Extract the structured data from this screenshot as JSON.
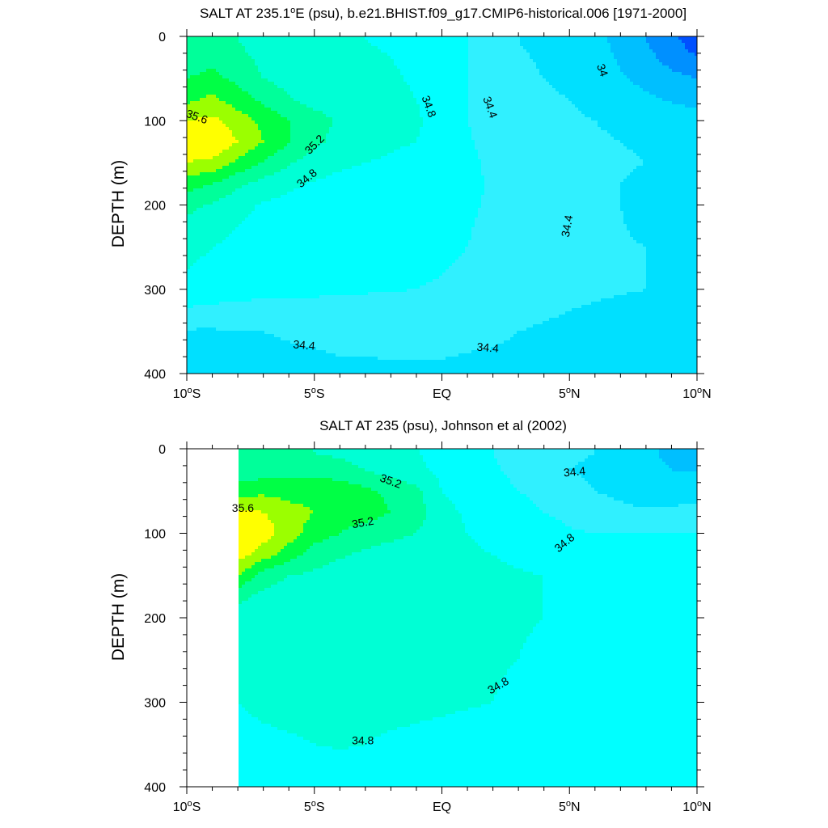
{
  "figure": {
    "panels": [
      {
        "title_main": "SALT AT 235.1",
        "title_sup": "o",
        "title_rest": "E (psu), b.e21.BHIST.f09_g17.CMIP6-historical.006 [1971-2000]",
        "ylabel": "DEPTH (m)"
      },
      {
        "title_main": "SALT AT 235 (psu), Johnson et al (2002)",
        "title_sup": "",
        "title_rest": "",
        "ylabel": "DEPTH (m)"
      }
    ],
    "x_ticks": [
      {
        "main": "10",
        "sup": "o",
        "rest": "S"
      },
      {
        "main": "5",
        "sup": "o",
        "rest": "S"
      },
      {
        "main": "EQ",
        "sup": "",
        "rest": ""
      },
      {
        "main": "5",
        "sup": "o",
        "rest": "N"
      },
      {
        "main": "10",
        "sup": "o",
        "rest": "N"
      }
    ],
    "y_ticks": [
      "0",
      "100",
      "200",
      "300",
      "400"
    ]
  },
  "palette": {
    "levels": [
      33.6,
      33.8,
      34.0,
      34.2,
      34.4,
      34.6,
      34.8,
      35.0,
      35.2,
      35.4,
      35.6,
      35.8
    ],
    "colors": [
      "#0000ff",
      "#0050ff",
      "#0090ff",
      "#00bfff",
      "#00e0ff",
      "#30f0ff",
      "#00ffff",
      "#00ffd5",
      "#00ff9a",
      "#00ff45",
      "#9bff00",
      "#ffff00",
      "#ffd928"
    ]
  },
  "chart_data": [
    {
      "type": "heatmap",
      "title": "SALT AT 235.1°E (psu), b.e21.BHIST.f09_g17.CMIP6-historical.006 [1971-2000]",
      "xlabel": "",
      "ylabel": "DEPTH (m)",
      "xlim": [
        -10,
        10
      ],
      "ylim": [
        400,
        0
      ],
      "x": [
        -10,
        -9,
        -8,
        -7,
        -6,
        -5,
        -4,
        -3,
        -2,
        -1,
        0,
        1,
        2,
        3,
        4,
        5,
        6,
        7,
        8,
        9,
        10
      ],
      "y": [
        5,
        25,
        50,
        75,
        100,
        125,
        150,
        175,
        200,
        250,
        300,
        350,
        400
      ],
      "z": [
        [
          35.05,
          35.1,
          35.0,
          34.92,
          34.88,
          34.84,
          34.82,
          34.8,
          34.78,
          34.74,
          34.7,
          34.6,
          34.5,
          34.4,
          34.36,
          34.3,
          34.25,
          34.15,
          34.0,
          33.85,
          33.7
        ],
        [
          35.1,
          35.15,
          35.05,
          34.95,
          34.9,
          34.86,
          34.84,
          34.82,
          34.8,
          34.76,
          34.7,
          34.6,
          34.5,
          34.42,
          34.38,
          34.32,
          34.26,
          34.18,
          34.06,
          33.92,
          33.8
        ],
        [
          35.2,
          35.25,
          35.15,
          35.0,
          34.92,
          34.88,
          34.86,
          34.84,
          34.82,
          34.78,
          34.72,
          34.6,
          34.5,
          34.44,
          34.4,
          34.36,
          34.3,
          34.22,
          34.14,
          34.06,
          34.0
        ],
        [
          35.35,
          35.45,
          35.3,
          35.15,
          35.02,
          34.93,
          34.9,
          34.86,
          34.84,
          34.8,
          34.72,
          34.6,
          34.5,
          34.46,
          34.43,
          34.4,
          34.36,
          34.3,
          34.24,
          34.18,
          34.14
        ],
        [
          35.6,
          35.65,
          35.5,
          35.35,
          35.2,
          35.08,
          34.97,
          34.87,
          34.84,
          34.82,
          34.74,
          34.6,
          34.52,
          34.48,
          34.45,
          34.42,
          34.4,
          34.37,
          34.34,
          34.3,
          34.28
        ],
        [
          35.7,
          35.8,
          35.6,
          35.4,
          35.22,
          35.05,
          34.93,
          34.85,
          34.82,
          34.8,
          34.74,
          34.62,
          34.54,
          34.5,
          34.47,
          34.44,
          34.42,
          34.4,
          34.38,
          34.36,
          34.36
        ],
        [
          35.6,
          35.55,
          35.35,
          35.18,
          35.02,
          34.9,
          34.84,
          34.8,
          34.78,
          34.76,
          34.72,
          34.64,
          34.56,
          34.52,
          34.49,
          34.46,
          34.44,
          34.42,
          34.4,
          34.38,
          34.38
        ],
        [
          35.3,
          35.2,
          35.05,
          34.92,
          34.84,
          34.78,
          34.74,
          34.72,
          34.71,
          34.7,
          34.68,
          34.64,
          34.58,
          34.53,
          34.5,
          34.47,
          34.44,
          34.4,
          34.36,
          34.38,
          34.4
        ],
        [
          35.05,
          34.98,
          34.86,
          34.78,
          34.74,
          34.7,
          34.68,
          34.67,
          34.67,
          34.66,
          34.65,
          34.62,
          34.58,
          34.54,
          34.5,
          34.47,
          34.44,
          34.4,
          34.36,
          34.37,
          34.4
        ],
        [
          34.85,
          34.8,
          34.74,
          34.7,
          34.68,
          34.66,
          34.65,
          34.64,
          34.64,
          34.63,
          34.62,
          34.6,
          34.56,
          34.52,
          34.48,
          34.45,
          34.43,
          34.41,
          34.4,
          34.39,
          34.39
        ],
        [
          34.76,
          34.72,
          34.68,
          34.66,
          34.65,
          34.64,
          34.63,
          34.62,
          34.61,
          34.6,
          34.59,
          34.57,
          34.54,
          34.5,
          34.47,
          34.44,
          34.42,
          34.41,
          34.4,
          34.39,
          34.39
        ],
        [
          34.38,
          34.38,
          34.39,
          34.4,
          34.41,
          34.42,
          34.43,
          34.43,
          34.44,
          34.44,
          34.44,
          34.43,
          34.42,
          34.4,
          34.38,
          34.36,
          34.35,
          34.34,
          34.33,
          34.33,
          34.33
        ],
        [
          34.35,
          34.35,
          34.36,
          34.36,
          34.37,
          34.37,
          34.38,
          34.38,
          34.38,
          34.38,
          34.38,
          34.37,
          34.37,
          34.36,
          34.35,
          34.34,
          34.33,
          34.32,
          34.32,
          34.31,
          34.31
        ]
      ],
      "contour_labels": [
        {
          "text": "35.6",
          "x": -9.6,
          "y": 95,
          "angle": 20
        },
        {
          "text": "35.2",
          "x": -5.0,
          "y": 128,
          "angle": -45
        },
        {
          "text": "34.8",
          "x": -5.3,
          "y": 168,
          "angle": -40
        },
        {
          "text": "34.8",
          "x": -0.5,
          "y": 83,
          "angle": 70
        },
        {
          "text": "34.4",
          "x": 1.9,
          "y": 84,
          "angle": 70
        },
        {
          "text": "34",
          "x": 6.3,
          "y": 40,
          "angle": 70
        },
        {
          "text": "34.4",
          "x": 4.9,
          "y": 225,
          "angle": -80
        },
        {
          "text": "34.4",
          "x": -5.4,
          "y": 366,
          "angle": 5
        },
        {
          "text": "34.4",
          "x": 1.8,
          "y": 369,
          "angle": 5
        }
      ]
    },
    {
      "type": "heatmap",
      "title": "SALT AT 235 (psu), Johnson et al (2002)",
      "xlabel": "",
      "ylabel": "DEPTH (m)",
      "xlim": [
        -10,
        10
      ],
      "ylim": [
        400,
        0
      ],
      "x": [
        -8,
        -7,
        -6,
        -5,
        -4,
        -3,
        -2,
        -1,
        0,
        1,
        2,
        3,
        4,
        5,
        6,
        7,
        8,
        9,
        10
      ],
      "y": [
        5,
        25,
        50,
        75,
        100,
        125,
        150,
        175,
        200,
        250,
        300,
        350,
        400
      ],
      "z": [
        [
          35.0,
          35.0,
          35.0,
          35.0,
          34.95,
          34.9,
          34.85,
          34.82,
          34.7,
          34.65,
          34.6,
          34.55,
          34.5,
          34.45,
          34.4,
          34.35,
          34.25,
          34.15,
          34.1
        ],
        [
          35.05,
          35.1,
          35.15,
          35.15,
          35.1,
          35.0,
          34.9,
          34.85,
          34.75,
          34.68,
          34.62,
          34.56,
          34.5,
          34.4,
          34.35,
          34.3,
          34.25,
          34.2,
          34.18
        ],
        [
          35.3,
          35.35,
          35.3,
          35.3,
          35.3,
          35.25,
          35.15,
          35.05,
          34.8,
          34.72,
          34.66,
          34.6,
          34.55,
          34.48,
          34.4,
          34.35,
          34.3,
          34.3,
          34.32
        ],
        [
          35.65,
          35.6,
          35.5,
          35.4,
          35.3,
          35.3,
          35.2,
          35.1,
          34.85,
          34.78,
          34.72,
          34.66,
          34.6,
          34.55,
          34.5,
          34.45,
          34.42,
          34.44,
          34.46
        ],
        [
          35.8,
          35.7,
          35.5,
          35.3,
          35.2,
          35.1,
          35.05,
          35.0,
          34.85,
          34.8,
          34.76,
          34.72,
          34.68,
          34.62,
          34.6,
          34.6,
          34.6,
          34.6,
          34.6
        ],
        [
          35.7,
          35.5,
          35.3,
          35.1,
          35.02,
          34.97,
          34.92,
          34.9,
          34.86,
          34.82,
          34.8,
          34.78,
          34.76,
          34.72,
          34.7,
          34.7,
          34.7,
          34.7,
          34.7
        ],
        [
          35.4,
          35.1,
          35.0,
          34.96,
          34.92,
          34.9,
          34.88,
          34.86,
          34.84,
          34.83,
          34.82,
          34.81,
          34.8,
          34.75,
          34.72,
          34.71,
          34.71,
          34.71,
          34.71
        ],
        [
          35.05,
          34.95,
          34.9,
          34.88,
          34.86,
          34.85,
          34.85,
          34.85,
          34.84,
          34.83,
          34.82,
          34.81,
          34.8,
          34.75,
          34.72,
          34.71,
          34.71,
          34.71,
          34.71
        ],
        [
          34.9,
          34.88,
          34.87,
          34.86,
          34.86,
          34.85,
          34.85,
          34.84,
          34.84,
          34.83,
          34.82,
          34.81,
          34.8,
          34.75,
          34.72,
          34.71,
          34.71,
          34.71,
          34.71
        ],
        [
          34.88,
          34.87,
          34.86,
          34.86,
          34.85,
          34.85,
          34.84,
          34.84,
          34.83,
          34.82,
          34.81,
          34.8,
          34.78,
          34.74,
          34.72,
          34.71,
          34.71,
          34.71,
          34.71
        ],
        [
          34.8,
          34.84,
          34.85,
          34.85,
          34.85,
          34.84,
          34.84,
          34.83,
          34.82,
          34.81,
          34.8,
          34.78,
          34.75,
          34.73,
          34.72,
          34.71,
          34.71,
          34.71,
          34.71
        ],
        [
          34.74,
          34.76,
          34.78,
          34.8,
          34.81,
          34.8,
          34.78,
          34.77,
          34.76,
          34.75,
          34.74,
          34.73,
          34.72,
          34.72,
          34.71,
          34.71,
          34.71,
          34.71,
          34.71
        ],
        [
          34.72,
          34.72,
          34.72,
          34.72,
          34.72,
          34.72,
          34.72,
          34.72,
          34.72,
          34.72,
          34.72,
          34.72,
          34.72,
          34.72,
          34.72,
          34.72,
          34.72,
          34.72,
          34.72
        ]
      ],
      "contour_labels": [
        {
          "text": "35.6",
          "x": -7.8,
          "y": 70,
          "angle": 0
        },
        {
          "text": "35.2",
          "x": -2.0,
          "y": 38,
          "angle": 20
        },
        {
          "text": "35.2",
          "x": -3.1,
          "y": 87,
          "angle": -10
        },
        {
          "text": "34.4",
          "x": 5.2,
          "y": 27,
          "angle": -5
        },
        {
          "text": "34.8",
          "x": 4.8,
          "y": 111,
          "angle": -40
        },
        {
          "text": "34.8",
          "x": 2.2,
          "y": 280,
          "angle": -30
        },
        {
          "text": "34.8",
          "x": -3.1,
          "y": 345,
          "angle": 0
        }
      ]
    }
  ]
}
